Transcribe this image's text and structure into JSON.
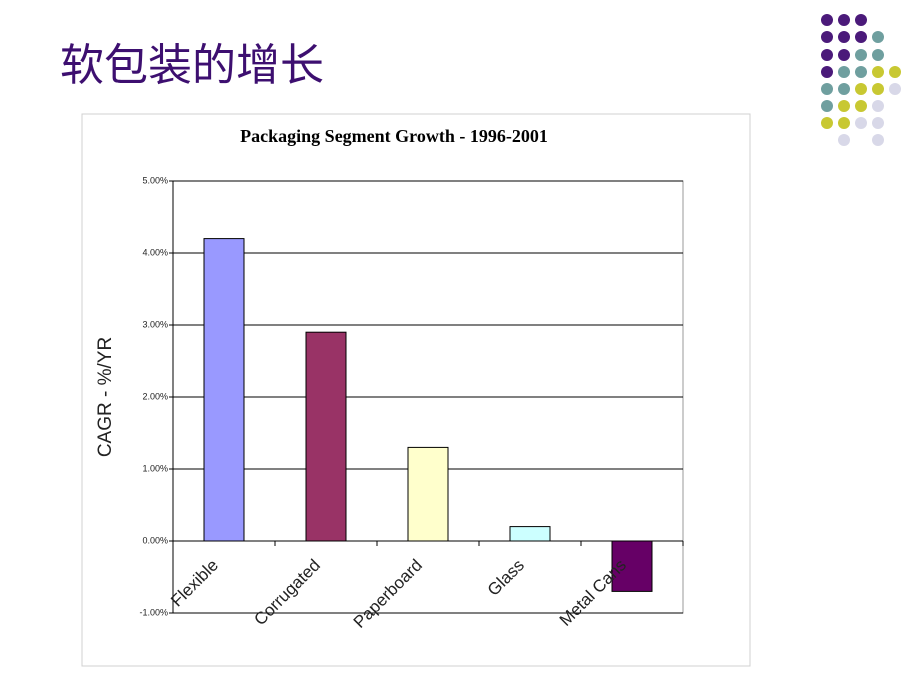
{
  "slide": {
    "title": "软包装的增长"
  },
  "chart_data": {
    "type": "bar",
    "title": "Packaging Segment Growth - 1996-2001",
    "y_label": "CAGR - %/YR",
    "categories": [
      "Flexible",
      "Corrugated",
      "Paperboard",
      "Glass",
      "Metal Cans"
    ],
    "values": [
      4.2,
      2.9,
      1.3,
      0.2,
      -0.7
    ],
    "colors": [
      "#9999ff",
      "#993366",
      "#ffffcc",
      "#ccffff",
      "#660066"
    ],
    "ylim": [
      -1,
      5
    ],
    "yticks": [
      {
        "value": -1,
        "label": "-1.00%"
      },
      {
        "value": 0,
        "label": "0.00%"
      },
      {
        "value": 1,
        "label": "1.00%"
      },
      {
        "value": 2,
        "label": "2.00%"
      },
      {
        "value": 3,
        "label": "3.00%"
      },
      {
        "value": 4,
        "label": "4.00%"
      },
      {
        "value": 5,
        "label": "5.00%"
      }
    ],
    "grid": true
  }
}
